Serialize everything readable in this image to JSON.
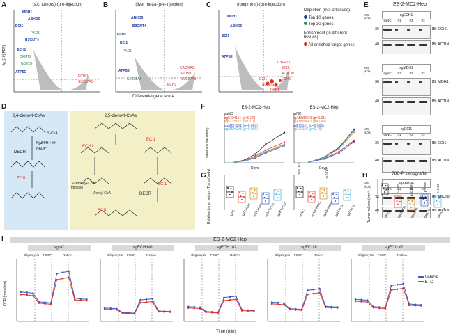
{
  "panel_labels": {
    "A": "A",
    "B": "B",
    "C": "C",
    "D": "D",
    "E": "E",
    "F": "F",
    "G": "G",
    "H": "H",
    "I": "I"
  },
  "volcano": {
    "titles": [
      "(s.c. tumors)-(pre-injection)",
      "(liver mets)-(pre-injection)",
      "(lung mets)-(pre-injection)"
    ],
    "ylabel": "-lg_{10}[FDR]",
    "xlabel": "Differential gene score",
    "a_blue": [
      "MDH1",
      "ABHD6",
      "ECI1",
      "PKD1",
      "B3GNT4",
      "ECH1",
      "CKMT2",
      "NOX03",
      "ATP5E",
      "UCP1"
    ],
    "a_red": [
      "ECHD1",
      "SLC27A1"
    ],
    "b_blue": [
      "ABHD6",
      "B3GNT4",
      "ECH1",
      "ECI1",
      "PKD1",
      "ATP5E",
      "SLC25A5"
    ],
    "b_red": [
      "CACNA1I",
      "ECHD1",
      "SLC27A3",
      "ECH1"
    ],
    "c_blue": [
      "MDH1",
      "ABHD6",
      "ECI1",
      "ATP5E"
    ],
    "c_red": [
      "CYP4Z1",
      "ECI2",
      "ACADM",
      "ECH1",
      "ECI1",
      "ACADS",
      "PKD1"
    ],
    "legend": {
      "depletion_title": "Depletion (in ≥ 2 tissues)",
      "top10": "Top 10 genes",
      "top30": "Top 30 genes",
      "enrich_title": "Enrichment (in different tissues)",
      "enriched": "All enriched target genes"
    }
  },
  "blots": {
    "title": "ES-2-MC2-Hep",
    "mw": "MW (kDa)",
    "groups": [
      {
        "sg": "sgECH1",
        "lanes": [
          "sgNC",
          "#1",
          "#2",
          "#3"
        ],
        "markers": [
          "36",
          "40"
        ],
        "ib": [
          "IB: ECH1",
          "IB: ACTIN"
        ]
      },
      {
        "sg": "sgMDH1",
        "lanes": [
          "sgNC",
          "#1",
          "#2",
          "#3"
        ],
        "markers": [
          "36",
          "40"
        ],
        "ib": [
          "IB: MDH1",
          "IB: ACTIN"
        ]
      },
      {
        "sg": "sgECI1",
        "lanes": [
          "sgNC",
          "#1",
          "#2",
          "#3"
        ],
        "markers": [
          "36",
          "40"
        ],
        "ib": [
          "IB: ECI1",
          "IB: ACTIN"
        ]
      },
      {
        "sg": "sgABHD6",
        "lanes": [
          "sgNC",
          "#1",
          "#2",
          "#3"
        ],
        "markers": [
          "36",
          "40"
        ],
        "ib": [
          "IB: ABHD6",
          "IB: ACTIN"
        ]
      }
    ]
  },
  "pathway": {
    "left_title": "2,4-dienoyl-CoAs",
    "right_title": "2,5-dienoyl-CoAs",
    "decr": "DECR",
    "cofactor1": "NADPH + H⁺",
    "cofactor2": "NADP⁺",
    "eci1": "ECI1",
    "ech1": "ECH1",
    "thiolase": "3-ketoacyl-CoA thiolase",
    "acetyl": "Acetyl-CoA",
    "scoa": "S-CoA"
  },
  "panel_f": {
    "charts": [
      {
        "title": "ES-2-MC2-Hep",
        "legend": [
          "sgNC",
          "sgECH1#1 (p=0.02)",
          "sgECH1#2 (p=0.01)",
          "sgMDH1#1 (p=0.003)",
          "sgMDH1#3 (p=0.009)"
        ]
      },
      {
        "title": "ES-2-MC2-Hep",
        "legend": [
          "sgNC",
          "sgABHD6#1 (p=0.01)",
          "sgABHD6#2 (p=0.48)",
          "sgECI1#1 (p=0.001)",
          "sgECI1#2 (p=0.76)"
        ]
      }
    ],
    "ylabel": "Tumor volume (mm³)",
    "xlabel": "Days"
  },
  "chart_data": [
    {
      "type": "line",
      "title": "ES-2-MC2-Hep",
      "xlabel": "Days",
      "ylabel": "Tumor volume (mm³)",
      "x": [
        5,
        10,
        15,
        20,
        29
      ],
      "ylim": [
        0,
        1000
      ],
      "series": [
        {
          "name": "sgNC",
          "values": [
            10,
            60,
            180,
            380,
            620
          ]
        },
        {
          "name": "sgECH1#1 (p=0.02)",
          "values": [
            10,
            50,
            140,
            260,
            420
          ]
        },
        {
          "name": "sgECH1#2 (p=0.01)",
          "values": [
            10,
            45,
            120,
            230,
            380
          ]
        },
        {
          "name": "sgMDH1#1 (p=0.003)",
          "values": [
            10,
            40,
            100,
            200,
            350
          ]
        },
        {
          "name": "sgMDH1#3 (p=0.009)",
          "values": [
            10,
            45,
            110,
            220,
            360
          ]
        }
      ]
    },
    {
      "type": "line",
      "title": "ES-2-MC2-Hep",
      "xlabel": "Days",
      "ylabel": "Tumor volume (mm³)",
      "x": [
        5,
        10,
        15,
        20
      ],
      "ylim": [
        0,
        700
      ],
      "series": [
        {
          "name": "sgNC",
          "values": [
            10,
            80,
            220,
            480
          ]
        },
        {
          "name": "sgABHD6#1 (p=0.01)",
          "values": [
            10,
            60,
            160,
            320
          ]
        },
        {
          "name": "sgABHD6#2 (p=0.48)",
          "values": [
            10,
            70,
            200,
            440
          ]
        },
        {
          "name": "sgECI1#1 (p=0.001)",
          "values": [
            10,
            55,
            140,
            300
          ]
        },
        {
          "name": "sgECI1#2 (p=0.76)",
          "values": [
            10,
            75,
            210,
            460
          ]
        }
      ]
    },
    {
      "type": "line",
      "title": "sgNC",
      "xlabel": "Time (min)",
      "ylabel": "OCR (pmol/min)",
      "x": [
        5,
        12,
        19,
        26,
        33,
        40,
        47,
        54,
        61,
        68,
        75,
        82
      ],
      "ylim": [
        0,
        250
      ],
      "series": [
        {
          "name": "Vehicle",
          "values": [
            120,
            118,
            115,
            80,
            78,
            75,
            195,
            200,
            205,
            95,
            92,
            90
          ]
        },
        {
          "name": "ETO",
          "values": [
            110,
            108,
            105,
            75,
            72,
            70,
            170,
            175,
            180,
            88,
            86,
            85
          ]
        }
      ]
    }
  ],
  "panel_g": {
    "ylabel": "Relative tumor weight (Tumor/body)",
    "left_groups": [
      "sgNC",
      "sgECH1#1",
      "sgECH1#2",
      "sgMDH1#1",
      "sgMDH1#3"
    ],
    "right_groups": [
      "sgNC",
      "sgABHD6#1",
      "sgABHD6#2",
      "sgECI1#1",
      "sgECI1#2"
    ],
    "right_p": [
      "p=0.061",
      "",
      "p=0.001",
      ""
    ]
  },
  "panel_h": {
    "title": "786-P xenografts",
    "ylabel": "Tumor volume (mm³)",
    "groups": [
      "sgNC",
      "sgABHD6",
      "sgECH1",
      "sgECI1",
      "sgMDH1"
    ],
    "p": [
      "p=0.02",
      "p=0.0007",
      "p=0.08",
      "p=0.02"
    ]
  },
  "panel_i": {
    "title": "ES-2-MC2-Hep",
    "subtitles": [
      "sgNC",
      "sgECH1#1",
      "sgECH1#2",
      "sgECI1#1",
      "sgECI1#2"
    ],
    "injections": [
      "Oligomycin",
      "FCCP",
      "Rot/AA"
    ],
    "ylabel": "OCR (pmol/min)",
    "xlabel": "Time (min)",
    "legend": [
      "Vehicle",
      "ETO"
    ],
    "colors": {
      "vehicle": "#3b5bbd",
      "eto": "#e0302a"
    }
  }
}
